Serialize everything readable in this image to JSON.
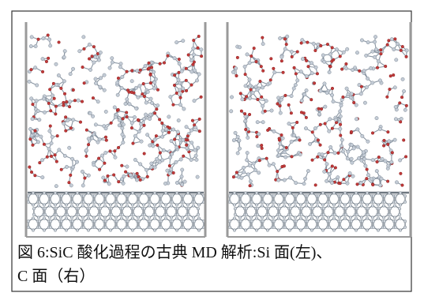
{
  "figure": {
    "caption": {
      "lines": [
        "図 6:SiC 酸化過程の古典 MD 解析:Si 面(左)、",
        "C 面（右）"
      ]
    }
  }
}
